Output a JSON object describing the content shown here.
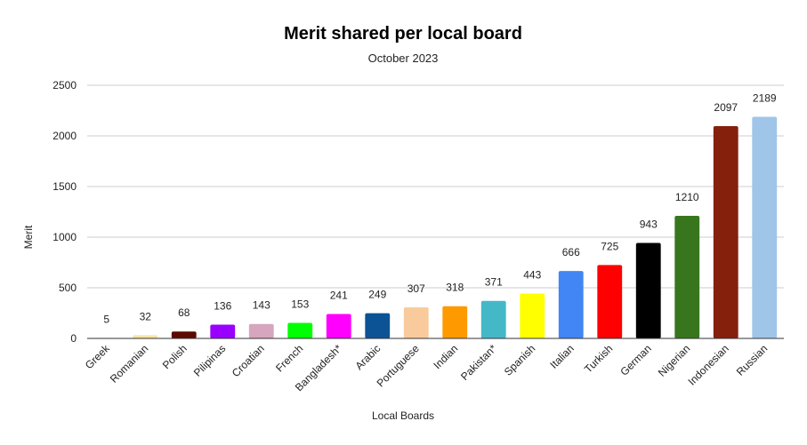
{
  "chart_data": {
    "type": "bar",
    "title": "Merit shared per local board",
    "subtitle": "October 2023",
    "xlabel": "Local Boards",
    "ylabel": "Merit",
    "ylim": [
      0,
      2500
    ],
    "yticks": [
      0,
      500,
      1000,
      1500,
      2000,
      2500
    ],
    "grid": true,
    "legend": "none",
    "categories": [
      "Greek",
      "Romanian",
      "Polish",
      "Pilipinas",
      "Croatian",
      "French",
      "Bangladesh*",
      "Arabic",
      "Portuguese",
      "Indian",
      "Pakistan*",
      "Spanish",
      "Italian",
      "Turkish",
      "German",
      "Nigerian",
      "Indonesian",
      "Russian"
    ],
    "values": [
      5,
      32,
      68,
      136,
      143,
      153,
      241,
      249,
      307,
      318,
      371,
      443,
      666,
      725,
      943,
      1210,
      2097,
      2189
    ],
    "colors": [
      "#f3e5a8",
      "#f8e3a3",
      "#5c0a00",
      "#9900ff",
      "#d5a6bd",
      "#00ff00",
      "#ff00ff",
      "#0b5394",
      "#f9cb9c",
      "#ff9900",
      "#45b8c8",
      "#ffff00",
      "#4285f4",
      "#ff0000",
      "#000000",
      "#38761d",
      "#85200c",
      "#9fc5e8"
    ]
  }
}
